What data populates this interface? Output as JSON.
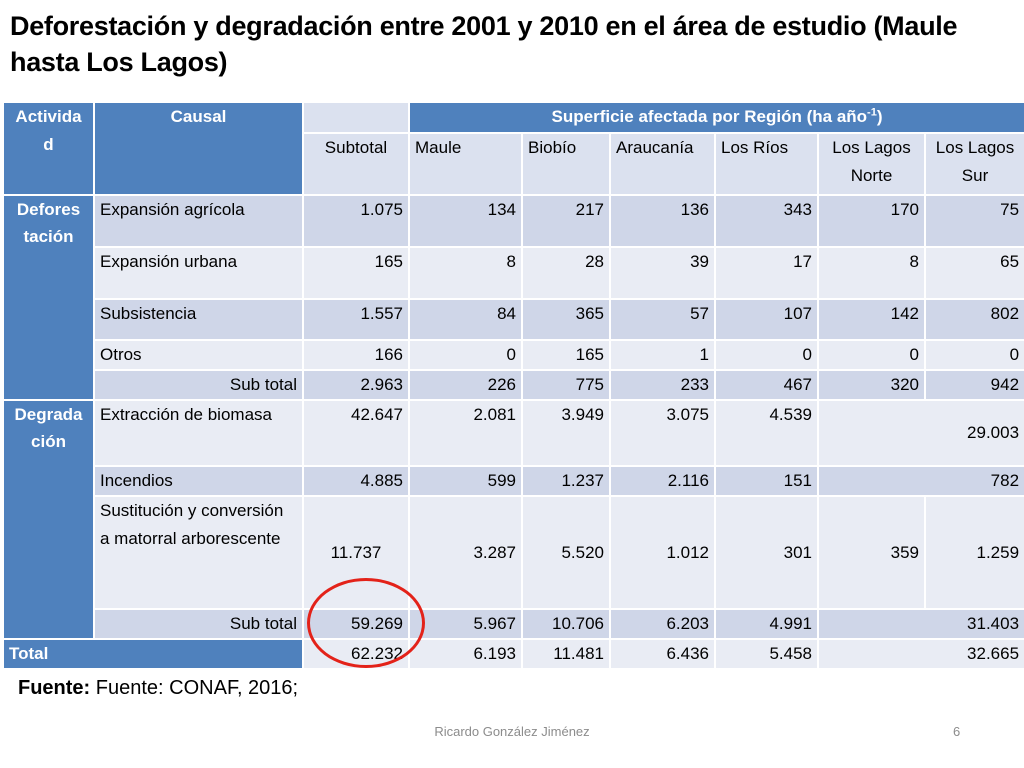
{
  "title": "Deforestación y degradación entre 2001 y 2010 en el área de estudio (Maule hasta Los Lagos)",
  "table": {
    "header_actividad": "Activida d",
    "header_causal": "Causal",
    "header_superficie_main": "Superficie afectada por Región (ha año",
    "header_superficie_sup": "-1",
    "header_superficie_end": ")",
    "columns": [
      "Subtotal",
      "Maule",
      "Biobío",
      "Araucanía",
      "Los Ríos",
      "Los Lagos Norte",
      "Los Lagos Sur"
    ],
    "group_deforestacion": "Defores tación",
    "group_degradacion": "Degrada ción",
    "rows_deforestacion": [
      {
        "causal": "Expansión agrícola",
        "values": [
          "1.075",
          "134",
          "217",
          "136",
          "343",
          "170",
          "75"
        ]
      },
      {
        "causal": "Expansión urbana",
        "values": [
          "165",
          "8",
          "28",
          "39",
          "17",
          "8",
          "65"
        ]
      },
      {
        "causal": "Subsistencia",
        "values": [
          "1.557",
          "84",
          "365",
          "57",
          "107",
          "142",
          "802"
        ]
      },
      {
        "causal": "Otros",
        "values": [
          "166",
          "0",
          "165",
          "1",
          "0",
          "0",
          "0"
        ]
      }
    ],
    "subtotal_deforestacion": {
      "label": "Sub total",
      "values": [
        "2.963",
        "226",
        "775",
        "233",
        "467",
        "320",
        "942"
      ]
    },
    "row_extraccion": {
      "causal": "Extracción de biomasa",
      "values": [
        "42.647",
        "2.081",
        "3.949",
        "3.075",
        "4.539"
      ],
      "merged_lagos": "29.003"
    },
    "row_incendios": {
      "causal": "Incendios",
      "values": [
        "4.885",
        "599",
        "1.237",
        "2.116",
        "151"
      ],
      "merged_lagos": "782"
    },
    "row_sustitucion": {
      "causal": "Sustitución y conversión a matorral arborescente",
      "values": [
        "11.737",
        "3.287",
        "5.520",
        "1.012",
        "301",
        "359",
        "1.259"
      ]
    },
    "subtotal_degradacion": {
      "label": "Sub total",
      "values": [
        "59.269",
        "5.967",
        "10.706",
        "6.203",
        "4.991"
      ],
      "merged_lagos": "31.403"
    },
    "total": {
      "label": "Total",
      "values": [
        "62.232",
        "6.193",
        "11.481",
        "6.436",
        "5.458"
      ],
      "merged_lagos": "32.665"
    }
  },
  "source_label": "Fuente:",
  "source_text": " Fuente: CONAF, 2016;",
  "footer_author": "Ricardo González Jiménez",
  "page_number": "6",
  "highlight_color": "#e32219"
}
